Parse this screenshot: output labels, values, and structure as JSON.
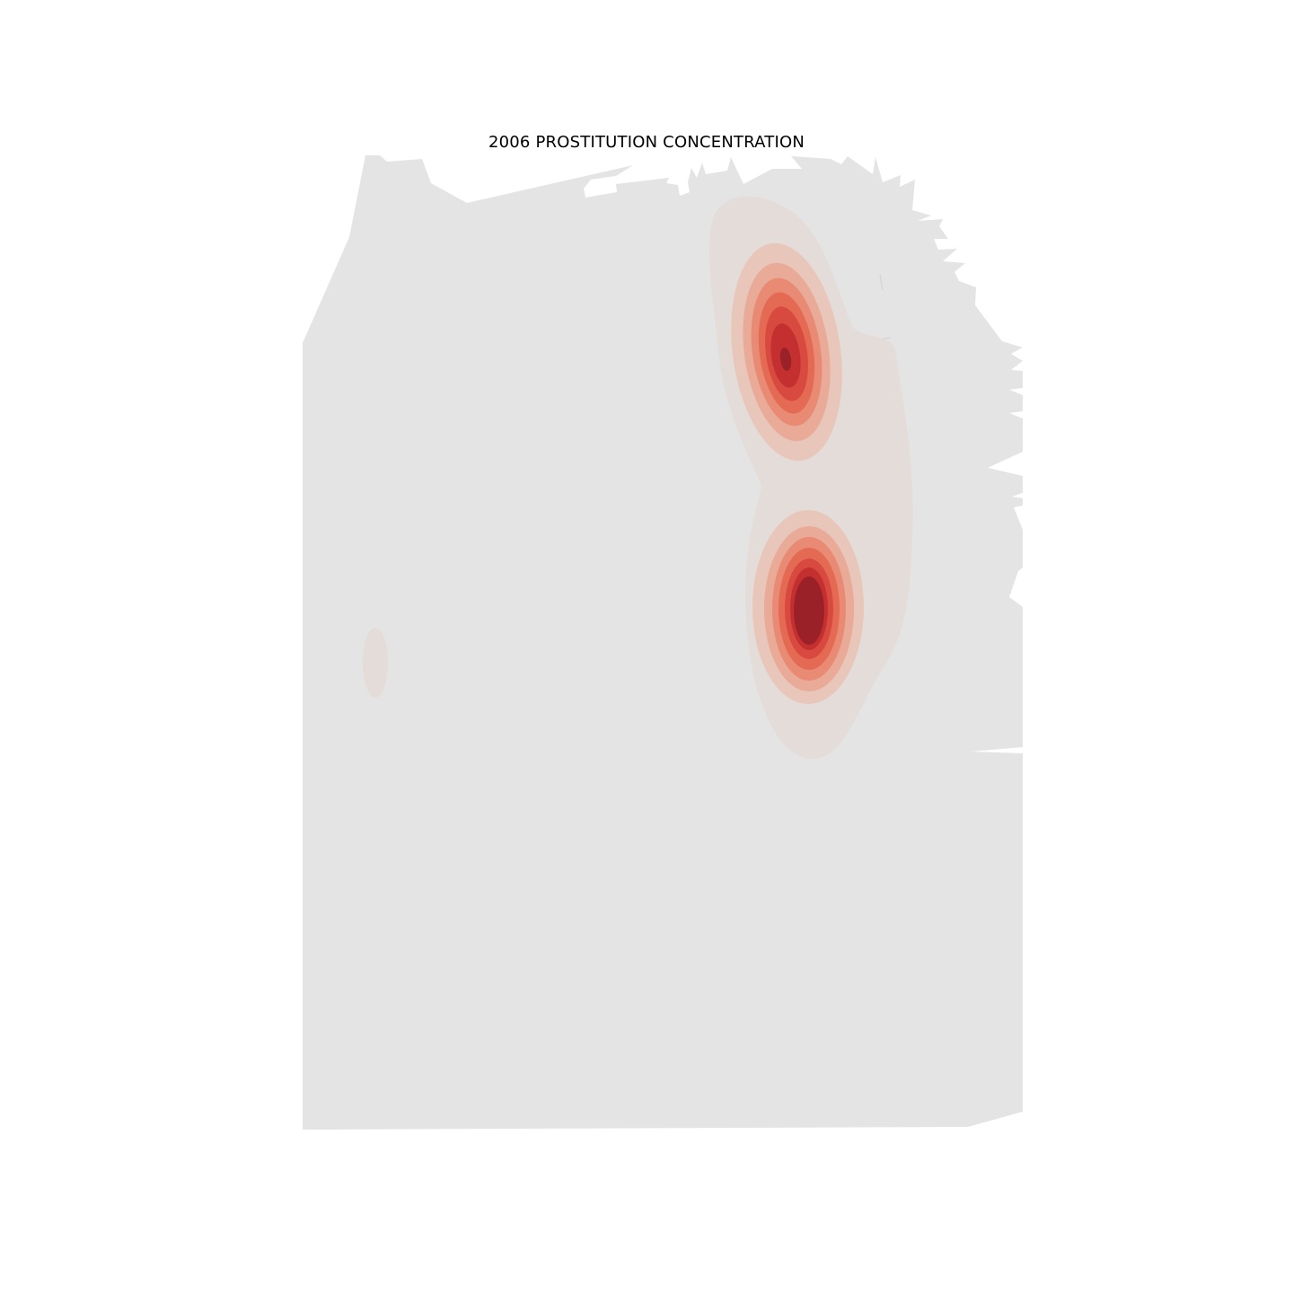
{
  "title": "2006 PROSTITUTION CONCENTRATION",
  "map": {
    "type": "density-heatmap",
    "land_color": "#e4e4e4",
    "background_color": "#ffffff",
    "colormap": [
      "#e4dcd8",
      "#e8c6ba",
      "#e9aa98",
      "#e98a74",
      "#e46a54",
      "#d84a3f",
      "#c4302f",
      "#9b2128"
    ],
    "hotspots": [
      {
        "name": "northern-hotspot",
        "peak_level": 7
      },
      {
        "name": "southern-hotspot",
        "peak_level": 7
      },
      {
        "name": "western-minor-hotspot",
        "peak_level": 0
      }
    ]
  }
}
